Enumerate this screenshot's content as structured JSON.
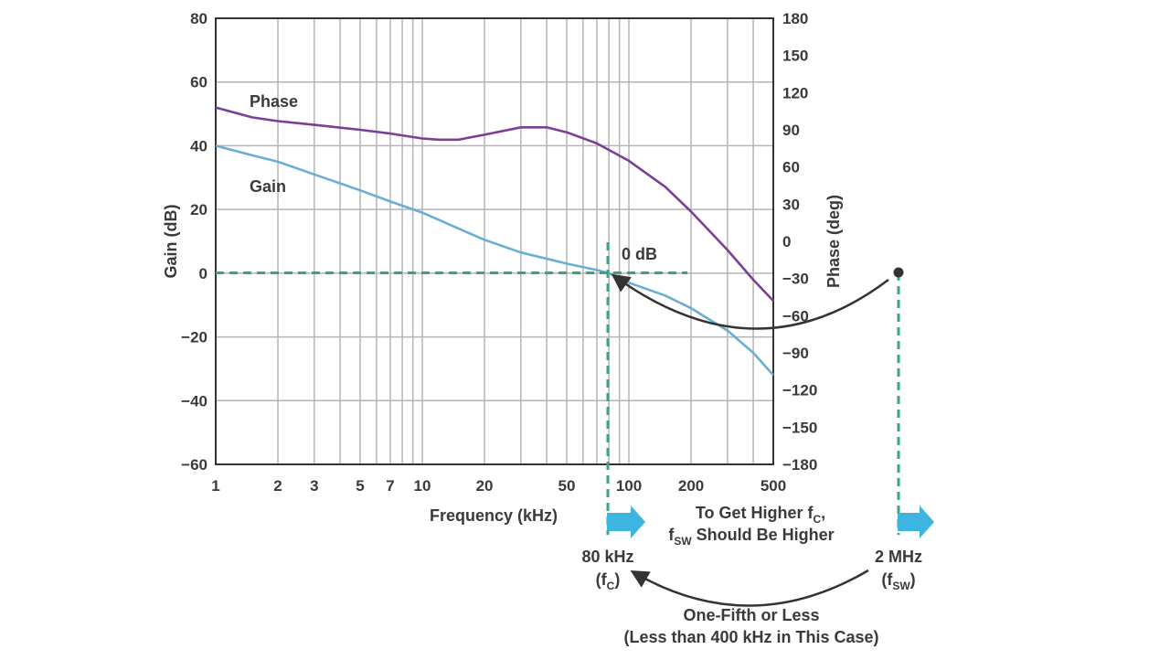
{
  "chart_data": {
    "type": "line",
    "xlabel": "Frequency (kHz)",
    "ylabel": "Gain (dB)",
    "y2label": "Phase (deg)",
    "xscale": "log",
    "xlim": [
      1,
      500
    ],
    "ylim": [
      -60,
      80
    ],
    "y2lim": [
      -180,
      180
    ],
    "grid": true,
    "x_ticks": [
      "1",
      "2",
      "3",
      "5",
      "7",
      "10",
      "20",
      "50",
      "100",
      "200",
      "500"
    ],
    "y_ticks": [
      "80",
      "60",
      "40",
      "20",
      "0",
      "−20",
      "−40",
      "−60"
    ],
    "y2_ticks": [
      "180",
      "150",
      "120",
      "90",
      "60",
      "30",
      "0",
      "−30",
      "−60",
      "−90",
      "−120",
      "−150",
      "−180"
    ],
    "series": [
      {
        "name": "Phase",
        "axis": "right",
        "color": "#7b3f98",
        "x": [
          1,
          1.5,
          2,
          3,
          5,
          7,
          10,
          12,
          15,
          20,
          30,
          40,
          50,
          70,
          100,
          150,
          200,
          300,
          400,
          500
        ],
        "y": [
          108,
          100,
          97,
          94,
          90,
          87,
          83,
          82,
          82,
          86,
          92,
          92,
          88,
          79,
          65,
          44,
          24,
          -7,
          -31,
          -48
        ]
      },
      {
        "name": "Gain",
        "axis": "left",
        "color": "#6aaed6",
        "x": [
          1,
          1.5,
          2,
          3,
          5,
          7,
          10,
          15,
          20,
          30,
          50,
          70,
          80,
          100,
          150,
          200,
          300,
          400,
          500
        ],
        "y": [
          40,
          37,
          35,
          31,
          26,
          22.5,
          19,
          14,
          10.5,
          6.5,
          3,
          1,
          0,
          -3,
          -7,
          -11,
          -18,
          -25,
          -32
        ]
      }
    ],
    "annotations": {
      "phase_label": "Phase",
      "gain_label": "Gain",
      "zero_db": "0 dB",
      "fc_value": "80 kHz",
      "fc_symbol": "f",
      "fc_subscript": "C",
      "fsw_value": "2 MHz",
      "fsw_symbol": "f",
      "fsw_subscript": "SW",
      "higher_line1_prefix": "To Get Higher f",
      "higher_line1_sub": "C",
      "higher_line1_suffix": ",",
      "higher_line2_prefix": "f",
      "higher_line2_sub": "SW",
      "higher_line2_suffix": " Should Be Higher",
      "ratio_line1": "One-Fifth or Less",
      "ratio_line2": "(Less than 400 kHz in This Case)"
    },
    "colors": {
      "phase": "#7b3f98",
      "gain": "#6aaed6",
      "marker_dashed": "#3aa57a",
      "arrow_block": "#3db5e0",
      "annotation_arrow": "#333333",
      "grid": "#b5b5b5",
      "frame": "#333333"
    }
  }
}
